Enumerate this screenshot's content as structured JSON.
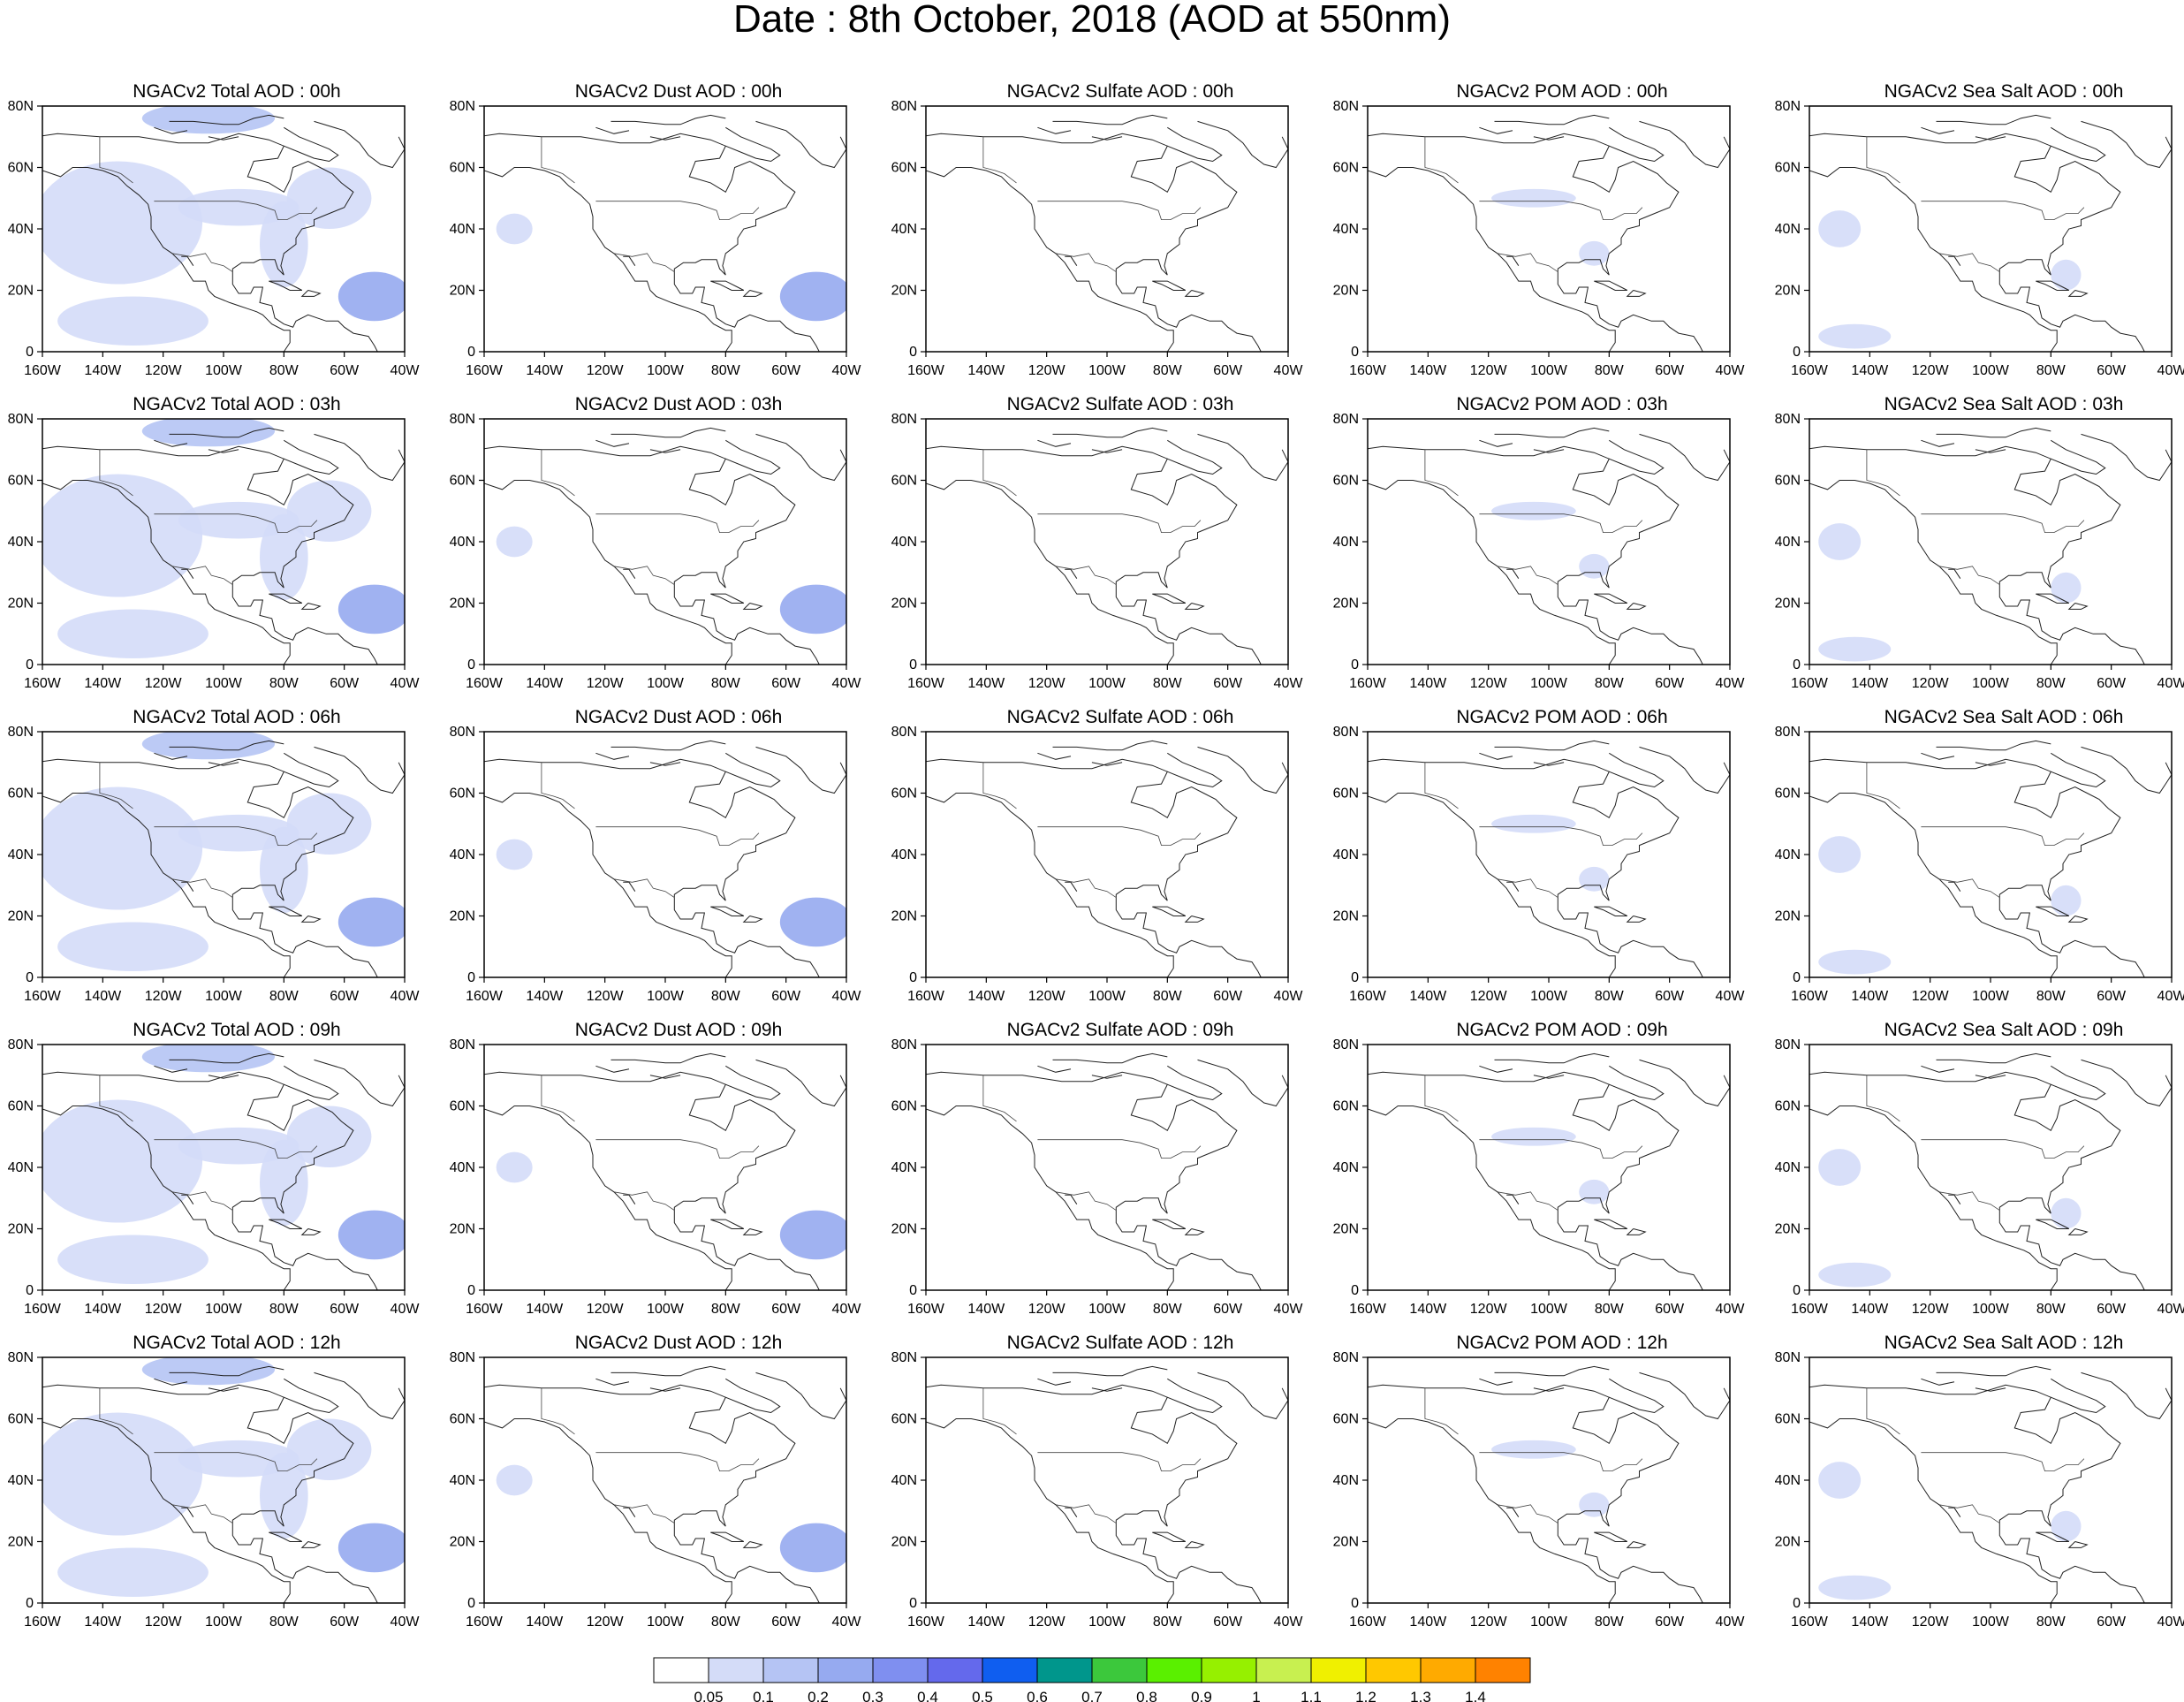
{
  "title": "Date : 8th October, 2018 (AOD at 550nm)",
  "lat_ticks": [
    "0",
    "20N",
    "40N",
    "60N",
    "80N"
  ],
  "lon_ticks": [
    "160W",
    "140W",
    "120W",
    "100W",
    "80W",
    "60W",
    "40W"
  ],
  "map_extent": {
    "lon": [
      -160,
      -40
    ],
    "lat": [
      0,
      80
    ]
  },
  "panels": [
    [
      "NGACv2 Total AOD : 00h",
      "NGACv2 Dust AOD : 00h",
      "NGACv2 Sulfate AOD : 00h",
      "NGACv2 POM AOD : 00h",
      "NGACv2 Sea Salt AOD : 00h"
    ],
    [
      "NGACv2 Total AOD : 03h",
      "NGACv2 Dust AOD : 03h",
      "NGACv2 Sulfate AOD : 03h",
      "NGACv2 POM AOD : 03h",
      "NGACv2 Sea Salt AOD : 03h"
    ],
    [
      "NGACv2 Total AOD : 06h",
      "NGACv2 Dust AOD : 06h",
      "NGACv2 Sulfate AOD : 06h",
      "NGACv2 POM AOD : 06h",
      "NGACv2 Sea Salt AOD : 06h"
    ],
    [
      "NGACv2 Total AOD : 09h",
      "NGACv2 Dust AOD : 09h",
      "NGACv2 Sulfate AOD : 09h",
      "NGACv2 POM AOD : 09h",
      "NGACv2 Sea Salt  AOD : 09h"
    ],
    [
      "NGACv2 Total AOD  : 12h",
      "NGACv2 Dust AOD : 12h",
      "NGACv2 Sulfate AOD : 12h",
      "NGACv2 POM  AOD : 12h",
      "NGACv2 Sea Salt  AOD : 12h"
    ]
  ],
  "colorbar": {
    "labels": [
      "0.05",
      "0.1",
      "0.2",
      "0.3",
      "0.4",
      "0.5",
      "0.6",
      "0.7",
      "0.8",
      "0.9",
      "1",
      "1.1",
      "1.2",
      "1.3",
      "1.4"
    ],
    "colors": [
      "#ffffff",
      "#d4dcf8",
      "#b5c4f4",
      "#96aaf0",
      "#7f8ff0",
      "#6469ec",
      "#0f5ef0",
      "#00968c",
      "#3cc83c",
      "#5af000",
      "#96f000",
      "#c8f050",
      "#f0f000",
      "#ffc800",
      "#ffaa00",
      "#ff8200",
      "#ff6400",
      "#ff2800"
    ]
  },
  "species": {
    "total": [
      {
        "lon": -135,
        "lat": 42,
        "rx": 28,
        "ry": 20,
        "c": 1
      },
      {
        "lon": -95,
        "lat": 47,
        "rx": 20,
        "ry": 6,
        "c": 1
      },
      {
        "lon": -105,
        "lat": 76,
        "rx": 22,
        "ry": 5,
        "c": 2
      },
      {
        "lon": -80,
        "lat": 35,
        "rx": 8,
        "ry": 14,
        "c": 1
      },
      {
        "lon": -50,
        "lat": 18,
        "rx": 12,
        "ry": 8,
        "c": 3
      },
      {
        "lon": -130,
        "lat": 10,
        "rx": 25,
        "ry": 8,
        "c": 1
      },
      {
        "lon": -65,
        "lat": 50,
        "rx": 14,
        "ry": 10,
        "c": 1
      }
    ],
    "dust": [
      {
        "lon": -50,
        "lat": 18,
        "rx": 12,
        "ry": 8,
        "c": 3
      },
      {
        "lon": -150,
        "lat": 40,
        "rx": 6,
        "ry": 5,
        "c": 1
      }
    ],
    "sulfate": [],
    "pom": [
      {
        "lon": -105,
        "lat": 50,
        "rx": 14,
        "ry": 3,
        "c": 1
      },
      {
        "lon": -85,
        "lat": 32,
        "rx": 5,
        "ry": 4,
        "c": 1
      }
    ],
    "seasalt": [
      {
        "lon": -150,
        "lat": 40,
        "rx": 7,
        "ry": 6,
        "c": 1
      },
      {
        "lon": -145,
        "lat": 5,
        "rx": 12,
        "ry": 4,
        "c": 1
      },
      {
        "lon": -75,
        "lat": 25,
        "rx": 5,
        "ry": 5,
        "c": 1
      }
    ]
  },
  "column_species": [
    "total",
    "dust",
    "sulfate",
    "pom",
    "seasalt"
  ]
}
